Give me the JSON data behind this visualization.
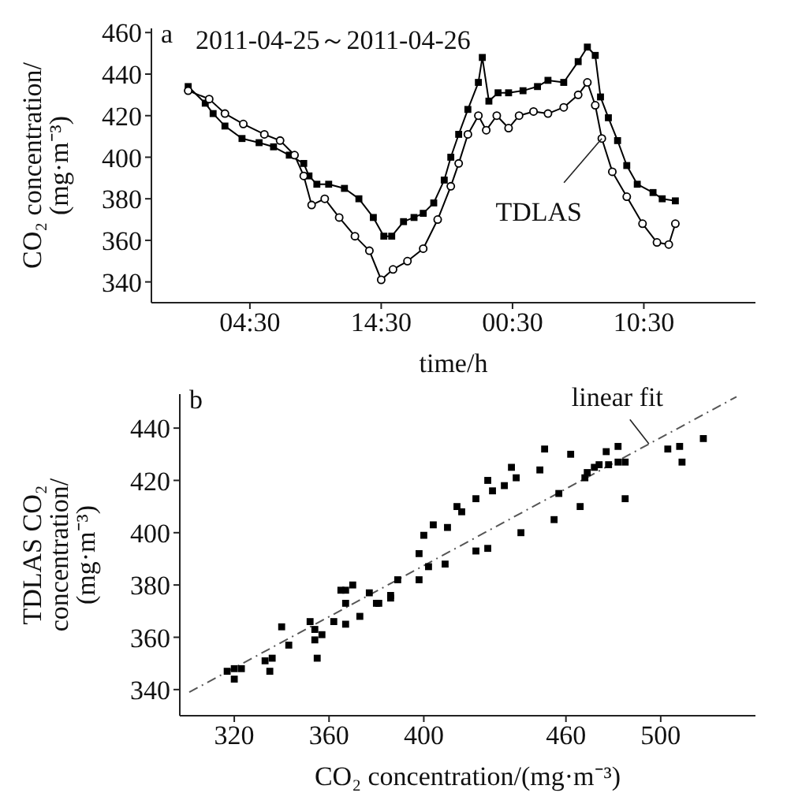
{
  "chart_data": [
    {
      "type": "line",
      "title": "a",
      "subtitle": "2011-04-25～2011-04-26",
      "xlabel": "time/h",
      "ylabel": "CO₂ concentration/\n(mg·m⁻³)",
      "xlim": [
        "2011-04-24T21:00",
        "2011-04-26T19:00"
      ],
      "xticks": [
        {
          "value": "2011-04-25T04:30",
          "label": "04:30"
        },
        {
          "value": "2011-04-25T14:30",
          "label": "14:30"
        },
        {
          "value": "2011-04-26T00:30",
          "label": "00:30"
        },
        {
          "value": "2011-04-26T10:30",
          "label": "10:30"
        }
      ],
      "ylim": [
        330,
        462
      ],
      "yticks": [
        340,
        360,
        380,
        400,
        420,
        440,
        460
      ],
      "series": [
        {
          "color": "#000000",
          "marker": "square",
          "x": [
            "2011-04-24T23:48",
            "2011-04-25T01:06",
            "2011-04-25T01:42",
            "2011-04-25T02:36",
            "2011-04-25T03:54",
            "2011-04-25T05:12",
            "2011-04-25T06:18",
            "2011-04-25T07:30",
            "2011-04-25T08:36",
            "2011-04-25T09:00",
            "2011-04-25T09:36",
            "2011-04-25T10:30",
            "2011-04-25T11:42",
            "2011-04-25T12:48",
            "2011-04-25T13:54",
            "2011-04-25T14:42",
            "2011-04-25T15:18",
            "2011-04-25T16:12",
            "2011-04-25T17:00",
            "2011-04-25T17:42",
            "2011-04-25T18:30",
            "2011-04-25T19:18",
            "2011-04-25T19:48",
            "2011-04-25T20:24",
            "2011-04-25T21:06",
            "2011-04-25T21:54",
            "2011-04-25T22:12",
            "2011-04-25T22:42",
            "2011-04-25T23:24",
            "2011-04-26T00:12",
            "2011-04-26T01:18",
            "2011-04-26T02:24",
            "2011-04-26T03:12",
            "2011-04-26T04:24",
            "2011-04-26T05:30",
            "2011-04-26T06:12",
            "2011-04-26T06:48",
            "2011-04-26T07:12",
            "2011-04-26T07:48",
            "2011-04-26T08:30",
            "2011-04-26T09:12",
            "2011-04-26T10:00",
            "2011-04-26T11:12",
            "2011-04-26T11:54",
            "2011-04-26T12:54"
          ],
          "values": [
            434,
            426,
            421,
            415,
            409,
            407,
            405,
            401,
            397,
            391,
            387,
            387,
            385,
            380,
            371,
            362,
            362,
            369,
            371,
            373,
            378,
            389,
            400,
            411,
            423,
            436,
            448,
            427,
            431,
            431,
            432,
            434,
            437,
            436,
            446,
            453,
            449,
            429,
            419,
            408,
            396,
            387,
            383,
            380,
            379
          ]
        },
        {
          "name": "TDLAS",
          "color": "#000000",
          "marker": "circle",
          "x": [
            "2011-04-24T23:48",
            "2011-04-25T01:24",
            "2011-04-25T02:36",
            "2011-04-25T04:00",
            "2011-04-25T05:36",
            "2011-04-25T06:48",
            "2011-04-25T07:54",
            "2011-04-25T08:36",
            "2011-04-25T09:12",
            "2011-04-25T10:12",
            "2011-04-25T11:18",
            "2011-04-25T12:30",
            "2011-04-25T13:36",
            "2011-04-25T14:30",
            "2011-04-25T15:24",
            "2011-04-25T16:30",
            "2011-04-25T17:42",
            "2011-04-25T18:48",
            "2011-04-25T19:48",
            "2011-04-25T20:24",
            "2011-04-25T21:06",
            "2011-04-25T21:54",
            "2011-04-25T22:30",
            "2011-04-25T23:18",
            "2011-04-26T00:12",
            "2011-04-26T01:00",
            "2011-04-26T02:06",
            "2011-04-26T03:12",
            "2011-04-26T04:24",
            "2011-04-26T05:30",
            "2011-04-26T06:12",
            "2011-04-26T06:48",
            "2011-04-26T07:18",
            "2011-04-26T08:06",
            "2011-04-26T09:12",
            "2011-04-26T10:24",
            "2011-04-26T11:30",
            "2011-04-26T12:24",
            "2011-04-26T12:54"
          ],
          "values": [
            432,
            428,
            421,
            416,
            411,
            408,
            401,
            391,
            377,
            380,
            371,
            362,
            355,
            341,
            346,
            350,
            356,
            370,
            386,
            397,
            411,
            420,
            413,
            420,
            414,
            420,
            422,
            421,
            424,
            430,
            436,
            425,
            409,
            393,
            381,
            368,
            359,
            358,
            368
          ]
        }
      ]
    },
    {
      "type": "scatter",
      "title": "b",
      "xlabel": "CO₂ concentration/(mg·m⁻³)",
      "ylabel": "TDLAS CO₂\nconcentration/\n(mg·m⁻³)",
      "xlim": [
        297,
        540
      ],
      "xticks": [
        320,
        360,
        400,
        460,
        500
      ],
      "ylim": [
        330,
        453
      ],
      "yticks": [
        340,
        360,
        380,
        400,
        420,
        440
      ],
      "series": [
        {
          "color": "#000000",
          "marker": "square",
          "x": [
            317,
            320,
            320,
            323,
            333,
            335,
            336,
            340,
            343,
            352,
            354,
            354,
            355,
            357,
            362,
            365,
            367,
            367,
            367,
            370,
            373,
            377,
            380,
            386,
            381,
            386,
            389,
            398,
            398,
            400,
            402,
            404,
            409,
            410,
            414,
            416,
            422,
            422,
            427,
            427,
            429,
            434,
            437,
            439,
            441,
            449,
            451,
            455,
            457,
            462,
            466,
            468,
            469,
            472,
            474,
            477,
            478,
            482,
            482,
            485,
            485,
            503,
            508,
            509,
            518
          ],
          "values": [
            347,
            348,
            344,
            348,
            351,
            347,
            352,
            364,
            357,
            366,
            363,
            359,
            352,
            361,
            366,
            378,
            378,
            373,
            365,
            380,
            368,
            377,
            373,
            376,
            373,
            375,
            382,
            382,
            392,
            399,
            387,
            403,
            388,
            402,
            410,
            408,
            413,
            393,
            394,
            420,
            416,
            418,
            425,
            421,
            400,
            424,
            432,
            405,
            415,
            430,
            410,
            421,
            423,
            425,
            426,
            431,
            426,
            427,
            433,
            413,
            427,
            432,
            433,
            427,
            436
          ]
        },
        {
          "type": "line",
          "color": "#555555",
          "marker": "none",
          "line_style": "dashed",
          "x": [
            301,
            532
          ],
          "values": [
            339,
            452
          ]
        }
      ],
      "annotations": [
        {
          "text": "linear fit",
          "x": 495,
          "y": 434
        }
      ]
    }
  ]
}
